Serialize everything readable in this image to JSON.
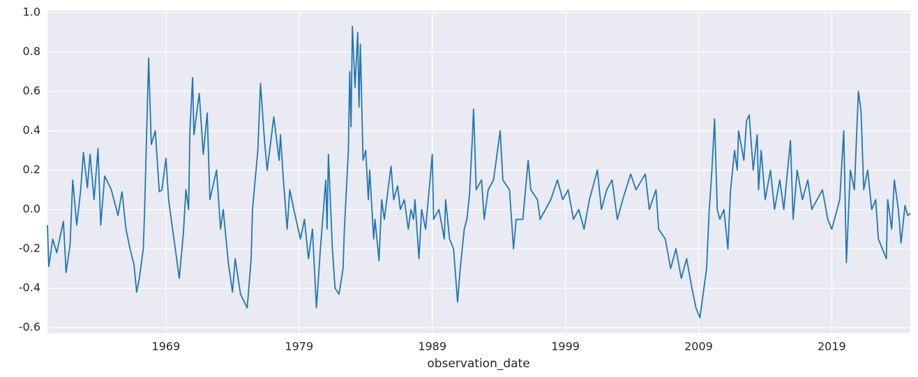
{
  "chart_data": {
    "type": "line",
    "xlabel": "observation_date",
    "xlim": [
      1960.1,
      2024.9
    ],
    "xticks": [
      1969,
      1979,
      1989,
      1999,
      2009,
      2019
    ],
    "ylim": [
      -0.628,
      1.011
    ],
    "yticks": [
      -0.6,
      -0.4,
      -0.2,
      {
        "value": 0,
        "label": "0.0"
      },
      0.2,
      0.4,
      0.6,
      0.8,
      {
        "value": 1,
        "label": "1.0"
      }
    ],
    "grid": true,
    "series": [
      {
        "color": "#1f77b4",
        "x": [
          1960.1,
          1960.2,
          1960.5,
          1960.8,
          1961.3,
          1961.5,
          1961.8,
          1962.0,
          1962.3,
          1962.6,
          1962.8,
          1963.1,
          1963.3,
          1963.6,
          1963.9,
          1964.1,
          1964.4,
          1964.9,
          1965.4,
          1965.7,
          1966.0,
          1966.3,
          1966.6,
          1966.8,
          1967.0,
          1967.3,
          1967.4,
          1967.5,
          1967.7,
          1967.9,
          1968.2,
          1968.5,
          1968.7,
          1969.0,
          1969.2,
          1969.5,
          1970.0,
          1970.3,
          1970.5,
          1970.7,
          1970.8,
          1971.0,
          1971.1,
          1971.5,
          1971.8,
          1972.1,
          1972.3,
          1972.8,
          1973.1,
          1973.3,
          1973.7,
          1974.0,
          1974.2,
          1974.6,
          1975.1,
          1975.4,
          1975.5,
          1975.9,
          1976.1,
          1976.4,
          1976.6,
          1977.1,
          1977.5,
          1977.6,
          1977.8,
          1978.1,
          1978.3,
          1978.6,
          1979.1,
          1979.4,
          1979.7,
          1980.0,
          1980.3,
          1980.6,
          1981.0,
          1981.1,
          1981.2,
          1981.5,
          1981.7,
          1982.0,
          1982.3,
          1982.4,
          1982.7,
          1982.8,
          1982.9,
          1983.0,
          1983.2,
          1983.4,
          1983.5,
          1983.6,
          1983.8,
          1984.0,
          1984.2,
          1984.3,
          1984.6,
          1984.7,
          1985.0,
          1985.2,
          1985.4,
          1985.9,
          1986.1,
          1986.4,
          1986.6,
          1986.9,
          1987.2,
          1987.4,
          1987.6,
          1987.7,
          1988.0,
          1988.2,
          1988.5,
          1989.0,
          1989.1,
          1989.5,
          1989.9,
          1990.0,
          1990.3,
          1990.6,
          1990.9,
          1991.1,
          1991.4,
          1991.6,
          1991.8,
          1992.0,
          1992.1,
          1992.3,
          1992.7,
          1992.9,
          1993.2,
          1993.6,
          1994.1,
          1994.3,
          1994.8,
          1995.1,
          1995.3,
          1995.8,
          1996.2,
          1996.4,
          1996.9,
          1997.1,
          1997.5,
          1997.9,
          1998.4,
          1998.8,
          1999.2,
          1999.6,
          2000.0,
          2000.4,
          2000.8,
          2001.4,
          2001.7,
          2002.1,
          2002.5,
          2002.9,
          2003.3,
          2003.9,
          2004.3,
          2005.0,
          2005.3,
          2005.8,
          2006.0,
          2006.5,
          2006.9,
          2007.3,
          2007.7,
          2008.1,
          2008.5,
          2008.8,
          2009.1,
          2009.3,
          2009.6,
          2009.8,
          2010.0,
          2010.2,
          2010.4,
          2010.6,
          2010.9,
          2011.2,
          2011.4,
          2011.7,
          2011.9,
          2012.0,
          2012.4,
          2012.6,
          2012.8,
          2013.1,
          2013.4,
          2013.5,
          2013.7,
          2014.0,
          2014.4,
          2014.7,
          2015.1,
          2015.4,
          2015.9,
          2016.1,
          2016.4,
          2016.8,
          2017.2,
          2017.5,
          2017.9,
          2018.3,
          2018.7,
          2019.0,
          2019.4,
          2019.6,
          2019.9,
          2020.1,
          2020.3,
          2020.4,
          2020.7,
          2021.0,
          2021.2,
          2021.4,
          2021.7,
          2022.0,
          2022.3,
          2022.5,
          2022.8,
          2023.1,
          2023.2,
          2023.5,
          2023.7,
          2024.0,
          2024.2,
          2024.5,
          2024.7,
          2024.9
        ],
        "values": [
          -0.08,
          -0.29,
          -0.15,
          -0.22,
          -0.06,
          -0.32,
          -0.18,
          0.15,
          -0.08,
          0.1,
          0.29,
          0.11,
          0.28,
          0.05,
          0.31,
          -0.08,
          0.17,
          0.1,
          -0.03,
          0.09,
          -0.1,
          -0.2,
          -0.28,
          -0.42,
          -0.35,
          -0.2,
          0.0,
          0.26,
          0.77,
          0.33,
          0.4,
          0.09,
          0.1,
          0.26,
          0.05,
          -0.1,
          -0.35,
          -0.13,
          0.1,
          0.0,
          0.4,
          0.67,
          0.38,
          0.59,
          0.28,
          0.49,
          0.05,
          0.2,
          -0.1,
          0.0,
          -0.28,
          -0.42,
          -0.25,
          -0.43,
          -0.5,
          -0.25,
          0.0,
          0.3,
          0.64,
          0.35,
          0.2,
          0.47,
          0.25,
          0.38,
          0.17,
          -0.1,
          0.1,
          0.0,
          -0.15,
          -0.05,
          -0.25,
          -0.1,
          -0.5,
          -0.2,
          0.15,
          -0.1,
          0.28,
          -0.2,
          -0.4,
          -0.43,
          -0.3,
          -0.1,
          0.3,
          0.7,
          0.42,
          0.93,
          0.62,
          0.9,
          0.52,
          0.84,
          0.25,
          0.3,
          0.05,
          0.2,
          -0.15,
          -0.05,
          -0.26,
          0.05,
          -0.05,
          0.22,
          0.05,
          0.12,
          0.0,
          0.05,
          -0.1,
          0.0,
          -0.05,
          0.05,
          -0.25,
          0.0,
          -0.1,
          0.28,
          -0.05,
          0.0,
          -0.15,
          0.05,
          -0.15,
          -0.2,
          -0.47,
          -0.3,
          -0.1,
          -0.05,
          0.08,
          0.35,
          0.51,
          0.1,
          0.15,
          -0.05,
          0.1,
          0.15,
          0.4,
          0.15,
          0.1,
          -0.2,
          -0.05,
          -0.05,
          0.25,
          0.1,
          0.05,
          -0.05,
          0.0,
          0.05,
          0.15,
          0.05,
          0.1,
          -0.05,
          0.0,
          -0.1,
          0.05,
          0.2,
          0.0,
          0.1,
          0.15,
          -0.05,
          0.05,
          0.18,
          0.1,
          0.18,
          0.0,
          0.1,
          -0.1,
          -0.15,
          -0.3,
          -0.2,
          -0.35,
          -0.25,
          -0.4,
          -0.5,
          -0.55,
          -0.45,
          -0.3,
          0.0,
          0.2,
          0.46,
          0.0,
          -0.05,
          0.0,
          -0.2,
          0.1,
          0.3,
          0.2,
          0.4,
          0.25,
          0.45,
          0.48,
          0.2,
          0.38,
          0.1,
          0.3,
          0.05,
          0.2,
          0.0,
          0.15,
          0.0,
          0.35,
          -0.05,
          0.2,
          0.05,
          0.15,
          0.0,
          0.05,
          0.1,
          -0.05,
          -0.1,
          0.0,
          0.05,
          0.4,
          -0.27,
          0.05,
          0.2,
          0.1,
          0.6,
          0.5,
          0.1,
          0.2,
          0.0,
          0.05,
          -0.15,
          -0.2,
          -0.25,
          0.05,
          -0.1,
          0.15,
          0.0,
          -0.17,
          0.02,
          -0.03,
          -0.02
        ]
      }
    ]
  }
}
